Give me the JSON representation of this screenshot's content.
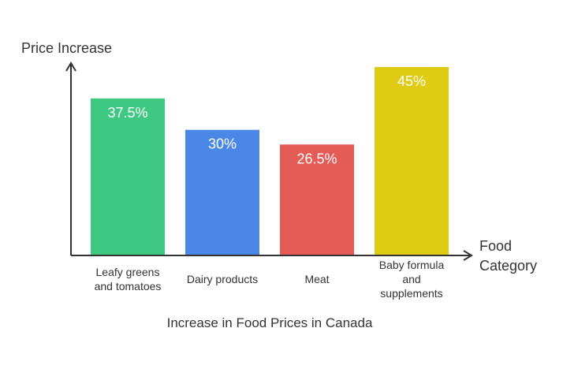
{
  "chart_data": {
    "type": "bar",
    "categories": [
      [
        "Leafy greens",
        "and tomatoes"
      ],
      [
        "Dairy products"
      ],
      [
        "Meat"
      ],
      [
        "Baby formula",
        "and",
        "supplements"
      ]
    ],
    "values": [
      37.5,
      30,
      26.5,
      45
    ],
    "value_labels": [
      "37.5%",
      "30%",
      "26.5%",
      "45%"
    ],
    "colors": [
      "#3ec882",
      "#4a87e6",
      "#e55b55",
      "#dfcb14"
    ],
    "title": "Increase in Food Prices in Canada",
    "ylabel": "Price Increase",
    "xlabel": [
      "Food",
      "Category"
    ],
    "ylim": [
      0,
      45
    ],
    "grid": false,
    "legend": "none"
  }
}
